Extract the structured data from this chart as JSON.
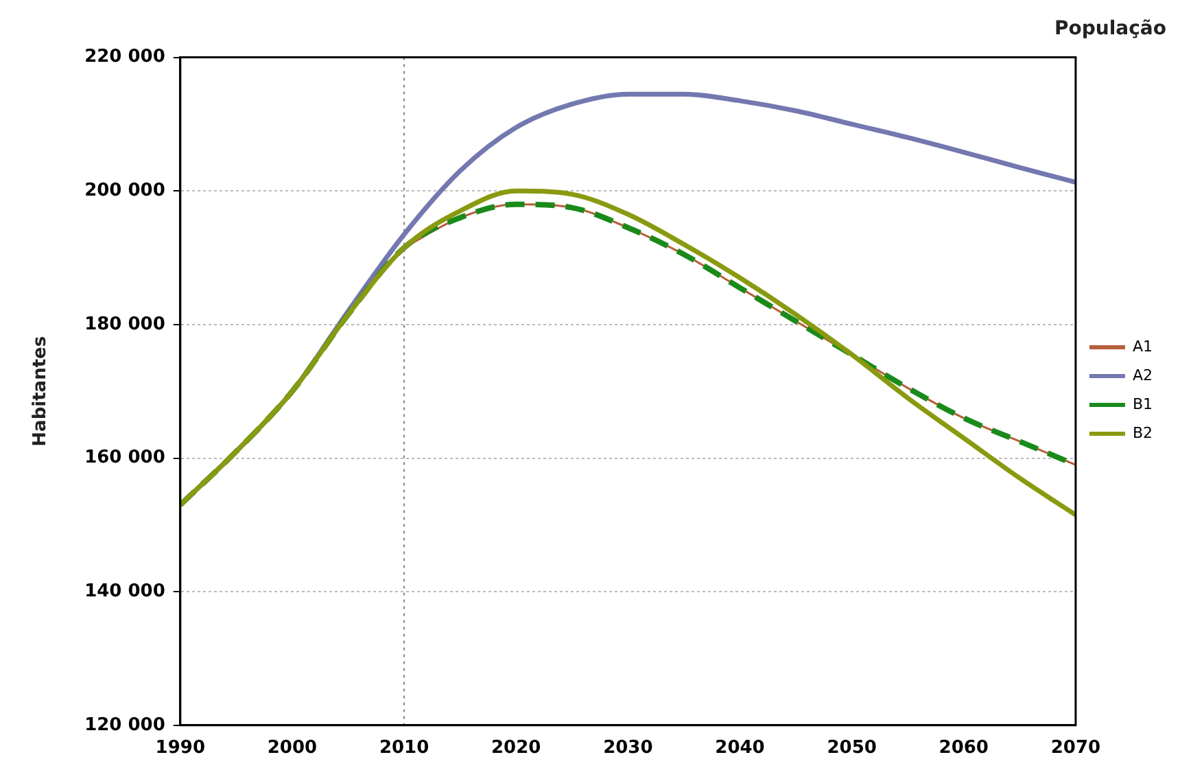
{
  "chart_data": {
    "type": "line",
    "title": "População",
    "ylabel": "Habitantes",
    "x": [
      1990,
      1995,
      2000,
      2005,
      2010,
      2015,
      2020,
      2025,
      2030,
      2035,
      2040,
      2045,
      2050,
      2055,
      2060,
      2065,
      2070
    ],
    "series": [
      {
        "name": "A1",
        "color": "#b5603a",
        "values": [
          null,
          null,
          null,
          null,
          191500,
          196000,
          198000,
          197500,
          194500,
          190500,
          185500,
          180500,
          175500,
          170500,
          166000,
          162500,
          159000
        ]
      },
      {
        "name": "A2",
        "color": "#7378b0",
        "values": [
          153000,
          161000,
          170000,
          182000,
          193500,
          203000,
          209500,
          213000,
          214500,
          214500,
          213500,
          212000,
          210000,
          208000,
          205800,
          203500,
          201300
        ]
      },
      {
        "name": "B1",
        "color": "#1a8a1a",
        "line_style": "dashed",
        "values": [
          153000,
          161000,
          170000,
          181500,
          191500,
          196000,
          198000,
          197500,
          194500,
          190500,
          185500,
          180500,
          175500,
          170500,
          166000,
          162500,
          159000
        ]
      },
      {
        "name": "B2",
        "color": "#8a9a10",
        "values": [
          153000,
          161000,
          170000,
          181500,
          191500,
          197000,
          200000,
          199500,
          196500,
          192000,
          187000,
          181500,
          175500,
          169000,
          163000,
          157000,
          151500
        ]
      }
    ],
    "xlim": [
      1990,
      2070
    ],
    "xticks": [
      1990,
      2000,
      2010,
      2020,
      2030,
      2040,
      2050,
      2060,
      2070
    ],
    "ylim": [
      120000,
      220000
    ],
    "yticks": [
      {
        "value": 120000,
        "label": "120 000"
      },
      {
        "value": 140000,
        "label": "140 000"
      },
      {
        "value": 160000,
        "label": "160 000"
      },
      {
        "value": 180000,
        "label": "180 000"
      },
      {
        "value": 200000,
        "label": "200 000"
      },
      {
        "value": 220000,
        "label": "220 000"
      }
    ],
    "ref_lines": [
      {
        "axis": "x",
        "value": 2010,
        "color": "#808080",
        "line_style": "dotted"
      }
    ],
    "grid": "y",
    "legend": "right",
    "marker": "none"
  }
}
